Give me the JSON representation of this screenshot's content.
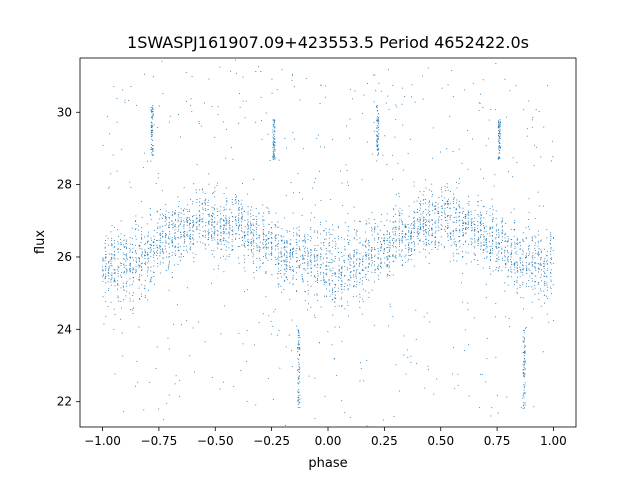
{
  "chart_data": {
    "type": "scatter",
    "title": "1SWASPJ161907.09+423553.5 Period 4652422.0s",
    "xlabel": "phase",
    "ylabel": "flux",
    "xlim": [
      -1.1,
      1.1
    ],
    "ylim": [
      21.3,
      31.5
    ],
    "xticks": [
      -1.0,
      -0.75,
      -0.5,
      -0.25,
      0.0,
      0.25,
      0.5,
      0.75,
      1.0
    ],
    "xtick_labels": [
      "−1.00",
      "−0.75",
      "−0.50",
      "−0.25",
      "0.00",
      "0.25",
      "0.50",
      "0.75",
      "1.00"
    ],
    "yticks": [
      22,
      24,
      26,
      28,
      30
    ],
    "ytick_labels": [
      "22",
      "24",
      "26",
      "28",
      "30"
    ],
    "grid": false,
    "legend": "none",
    "marker_color": "#1f77b4",
    "description_of_data": "phase-folded light curve; repeated over phase -1 to 1",
    "profile": {
      "phase": [
        -1.0,
        -0.9,
        -0.8,
        -0.7,
        -0.6,
        -0.5,
        -0.4,
        -0.3,
        -0.2,
        -0.1,
        0.0,
        0.1,
        0.2,
        0.3,
        0.4,
        0.5,
        0.6,
        0.7,
        0.8,
        0.9,
        1.0
      ],
      "flux_center": [
        25.8,
        25.7,
        26.1,
        26.6,
        26.9,
        27.0,
        26.9,
        26.5,
        26.1,
        25.9,
        25.7,
        25.7,
        26.1,
        26.5,
        26.9,
        27.0,
        26.9,
        26.5,
        26.1,
        25.8,
        25.8
      ],
      "flux_spread": [
        0.7,
        0.8,
        0.6,
        0.6,
        0.6,
        0.6,
        0.6,
        0.6,
        0.6,
        0.7,
        0.8,
        0.8,
        0.6,
        0.6,
        0.6,
        0.6,
        0.6,
        0.6,
        0.6,
        0.7,
        0.7
      ]
    },
    "vertical_streaks": [
      {
        "phase": -0.78,
        "flux_range": [
          28.8,
          30.2
        ]
      },
      {
        "phase": -0.24,
        "flux_range": [
          28.7,
          29.8
        ]
      },
      {
        "phase": -0.13,
        "flux_range": [
          21.8,
          24.0
        ]
      },
      {
        "phase": 0.22,
        "flux_range": [
          28.8,
          30.2
        ]
      },
      {
        "phase": 0.76,
        "flux_range": [
          28.7,
          29.8
        ]
      },
      {
        "phase": 0.87,
        "flux_range": [
          21.8,
          24.0
        ]
      }
    ]
  }
}
